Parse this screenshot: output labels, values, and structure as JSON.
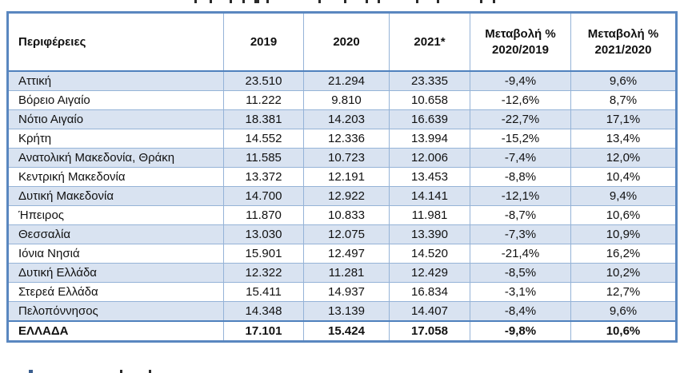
{
  "table": {
    "columns": [
      "Περιφέρειες",
      "2019",
      "2020",
      "2021*",
      "Μεταβολή %\n2020/2019",
      "Μεταβολή %\n2021/2020"
    ],
    "rows": [
      [
        "Αττική",
        "23.510",
        "21.294",
        "23.335",
        "-9,4%",
        "9,6%"
      ],
      [
        "Βόρειο Αιγαίο",
        "11.222",
        "9.810",
        "10.658",
        "-12,6%",
        "8,7%"
      ],
      [
        "Νότιο Αιγαίο",
        "18.381",
        "14.203",
        "16.639",
        "-22,7%",
        "17,1%"
      ],
      [
        "Κρήτη",
        "14.552",
        "12.336",
        "13.994",
        "-15,2%",
        "13,4%"
      ],
      [
        "Ανατολική Μακεδονία, Θράκη",
        "11.585",
        "10.723",
        "12.006",
        "-7,4%",
        "12,0%"
      ],
      [
        "Κεντρική Μακεδονία",
        "13.372",
        "12.191",
        "13.453",
        "-8,8%",
        "10,4%"
      ],
      [
        "Δυτική Μακεδονία",
        "14.700",
        "12.922",
        "14.141",
        "-12,1%",
        "9,4%"
      ],
      [
        "Ήπειρος",
        "11.870",
        "10.833",
        "11.981",
        "-8,7%",
        "10,6%"
      ],
      [
        "Θεσσαλία",
        "13.030",
        "12.075",
        "13.390",
        "-7,3%",
        "10,9%"
      ],
      [
        "Ιόνια Νησιά",
        "15.901",
        "12.497",
        "14.520",
        "-21,4%",
        "16,2%"
      ],
      [
        "Δυτική Ελλάδα",
        "12.322",
        "11.281",
        "12.429",
        "-8,5%",
        "10,2%"
      ],
      [
        "Στερεά Ελλάδα",
        "15.411",
        "14.937",
        "16.834",
        "-3,1%",
        "12,7%"
      ],
      [
        "Πελοπόννησος",
        "14.348",
        "13.139",
        "14.407",
        "-8,4%",
        "9,6%"
      ]
    ],
    "total_row": [
      "ΕΛΛΑΔΑ",
      "17.101",
      "15.424",
      "17.058",
      "-9,8%",
      "10,6%"
    ]
  },
  "colors": {
    "outer_border": "#5a87c0",
    "inner_border": "#95b3d7",
    "strong_rule": "#4f81bd",
    "shaded_row": "#d9e3f1",
    "text": "#111111",
    "background": "#ffffff"
  }
}
